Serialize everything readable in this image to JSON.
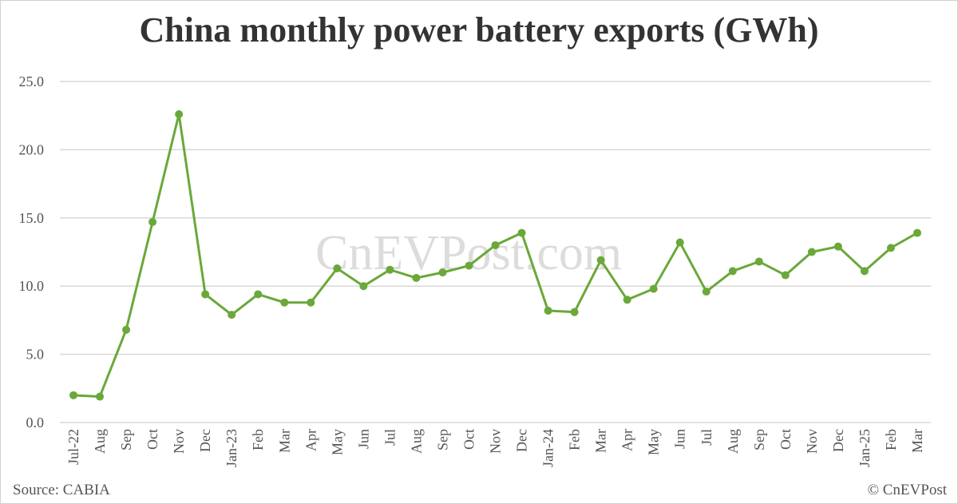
{
  "chart_data": {
    "type": "line",
    "title": "China monthly power battery exports (GWh)",
    "xlabel": "",
    "ylabel": "",
    "ylim": [
      0,
      25
    ],
    "yticks": [
      "0.0",
      "5.0",
      "10.0",
      "15.0",
      "20.0",
      "25.0"
    ],
    "grid": true,
    "color": "#6aa83a",
    "categories": [
      "Jul-22",
      "Aug",
      "Sep",
      "Oct",
      "Nov",
      "Dec",
      "Jan-23",
      "Feb",
      "Mar",
      "Apr",
      "May",
      "Jun",
      "Jul",
      "Aug",
      "Sep",
      "Oct",
      "Nov",
      "Dec",
      "Jan-24",
      "Feb",
      "Mar",
      "Apr",
      "May",
      "Jun",
      "Jul",
      "Aug",
      "Sep",
      "Oct",
      "Nov",
      "Dec",
      "Jan-25",
      "Feb",
      "Mar"
    ],
    "values": [
      2.0,
      1.9,
      6.8,
      14.7,
      22.6,
      9.4,
      7.9,
      9.4,
      8.8,
      8.8,
      11.3,
      10.0,
      11.2,
      10.6,
      11.0,
      11.5,
      13.0,
      13.9,
      8.2,
      8.1,
      11.9,
      9.0,
      9.8,
      13.2,
      9.6,
      11.1,
      11.8,
      10.8,
      12.5,
      12.9,
      11.1,
      12.8,
      13.9
    ]
  },
  "source": "Source: CABIA",
  "copyright": "© CnEVPost",
  "watermark": "CnEVPost.com"
}
